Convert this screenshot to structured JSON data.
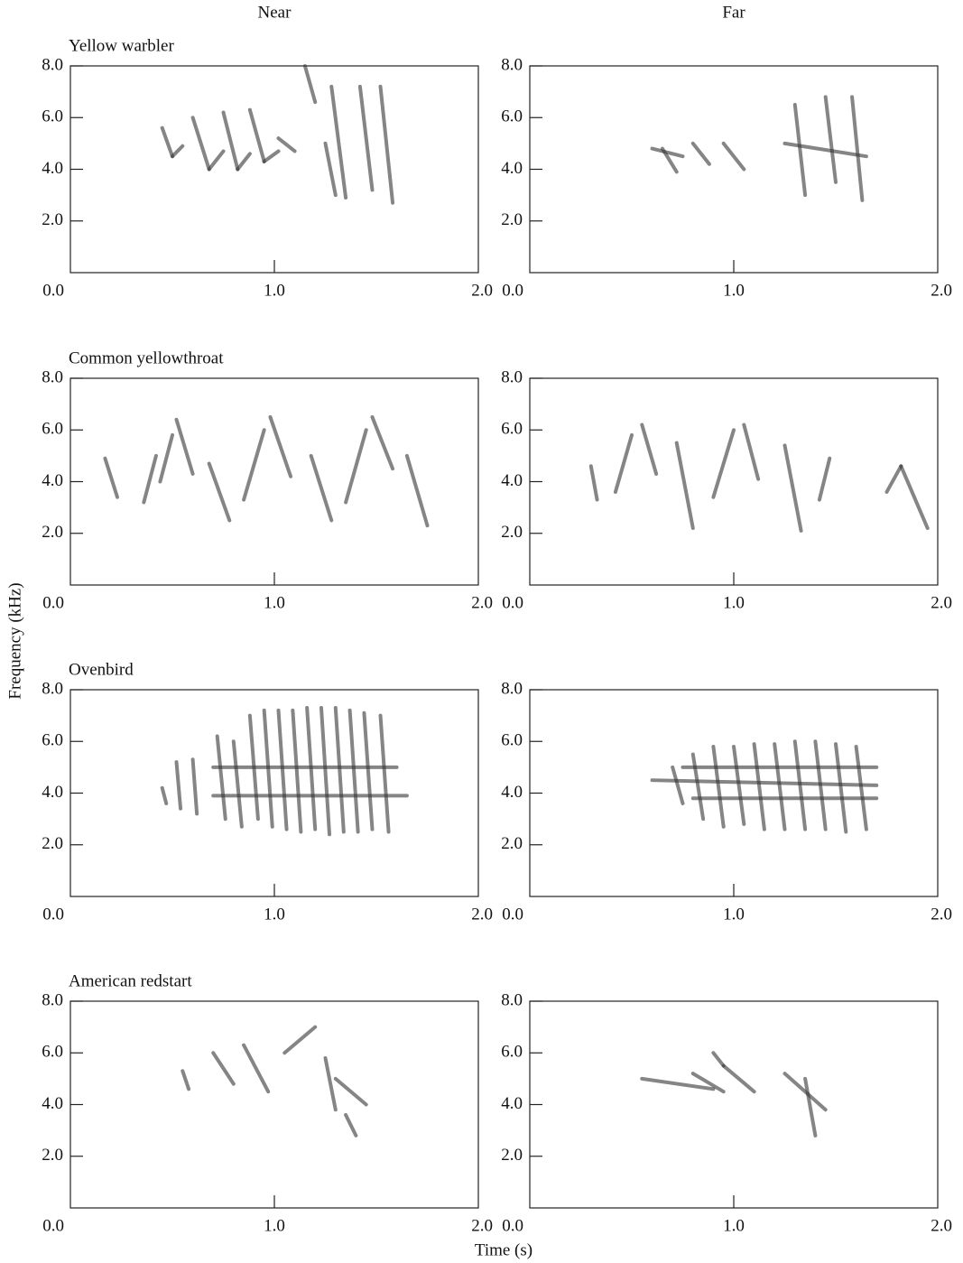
{
  "columns": [
    "Near",
    "Far"
  ],
  "ylabel": "Frequency (kHz)",
  "xlabel": "Time (s)",
  "chart_data": [
    {
      "type": "spectrogram",
      "title": "Yellow warbler",
      "xlim": [
        0,
        2
      ],
      "ylim": [
        0,
        8
      ],
      "xticks": [
        {
          "value": 0,
          "label": "0.0"
        },
        {
          "value": 1,
          "label": "1.0"
        },
        {
          "value": 2,
          "label": "2.0"
        }
      ],
      "yticks": [
        {
          "value": 2,
          "label": "2.0"
        },
        {
          "value": 4,
          "label": "4.0"
        },
        {
          "value": 6,
          "label": "6.0"
        },
        {
          "value": 8,
          "label": "8.0"
        }
      ],
      "notes": [
        [
          0.45,
          5.6,
          0.5,
          4.5
        ],
        [
          0.5,
          4.5,
          0.55,
          4.9
        ],
        [
          0.6,
          6.0,
          0.68,
          4.0
        ],
        [
          0.68,
          4.0,
          0.75,
          4.7
        ],
        [
          0.75,
          6.2,
          0.82,
          4.0
        ],
        [
          0.82,
          4.0,
          0.88,
          4.6
        ],
        [
          0.88,
          6.3,
          0.95,
          4.3
        ],
        [
          0.95,
          4.3,
          1.02,
          4.7
        ],
        [
          1.02,
          5.2,
          1.1,
          4.7
        ],
        [
          1.15,
          8.0,
          1.2,
          6.6
        ],
        [
          1.25,
          5.0,
          1.3,
          3.0
        ],
        [
          1.28,
          7.2,
          1.35,
          2.9
        ],
        [
          1.42,
          7.2,
          1.48,
          3.2
        ],
        [
          1.52,
          7.2,
          1.58,
          2.7
        ]
      ]
    },
    {
      "type": "spectrogram",
      "xlim": [
        0,
        2
      ],
      "ylim": [
        0,
        8
      ],
      "xticks": [
        {
          "value": 0,
          "label": "0.0"
        },
        {
          "value": 1,
          "label": "1.0"
        },
        {
          "value": 2,
          "label": "2.0"
        }
      ],
      "yticks": [
        {
          "value": 2,
          "label": "2.0"
        },
        {
          "value": 4,
          "label": "4.0"
        },
        {
          "value": 6,
          "label": "6.0"
        },
        {
          "value": 8,
          "label": "8.0"
        }
      ],
      "notes": [
        [
          0.6,
          4.8,
          0.75,
          4.5
        ],
        [
          0.65,
          4.8,
          0.72,
          3.9
        ],
        [
          0.8,
          5.0,
          0.88,
          4.2
        ],
        [
          0.95,
          5.0,
          1.05,
          4.0
        ],
        [
          1.25,
          5.0,
          1.65,
          4.5
        ],
        [
          1.3,
          6.5,
          1.35,
          3.0
        ],
        [
          1.45,
          6.8,
          1.5,
          3.5
        ],
        [
          1.58,
          6.8,
          1.63,
          2.8
        ]
      ]
    },
    {
      "type": "spectrogram",
      "title": "Common yellowthroat",
      "xlim": [
        0,
        2
      ],
      "ylim": [
        0,
        8
      ],
      "xticks": [
        {
          "value": 0,
          "label": "0.0"
        },
        {
          "value": 1,
          "label": "1.0"
        },
        {
          "value": 2,
          "label": "2.0"
        }
      ],
      "yticks": [
        {
          "value": 2,
          "label": "2.0"
        },
        {
          "value": 4,
          "label": "4.0"
        },
        {
          "value": 6,
          "label": "6.0"
        },
        {
          "value": 8,
          "label": "8.0"
        }
      ],
      "notes": [
        [
          0.17,
          4.9,
          0.23,
          3.4
        ],
        [
          0.36,
          3.2,
          0.42,
          5.0
        ],
        [
          0.44,
          4.0,
          0.5,
          5.8
        ],
        [
          0.52,
          6.4,
          0.6,
          4.3
        ],
        [
          0.68,
          4.7,
          0.78,
          2.5
        ],
        [
          0.85,
          3.3,
          0.95,
          6.0
        ],
        [
          0.98,
          6.5,
          1.08,
          4.2
        ],
        [
          1.18,
          5.0,
          1.28,
          2.5
        ],
        [
          1.35,
          3.2,
          1.45,
          6.0
        ],
        [
          1.48,
          6.5,
          1.58,
          4.5
        ],
        [
          1.65,
          5.0,
          1.75,
          2.3
        ]
      ]
    },
    {
      "type": "spectrogram",
      "xlim": [
        0,
        2
      ],
      "ylim": [
        0,
        8
      ],
      "xticks": [
        {
          "value": 0,
          "label": "0.0"
        },
        {
          "value": 1,
          "label": "1.0"
        },
        {
          "value": 2,
          "label": "2.0"
        }
      ],
      "yticks": [
        {
          "value": 2,
          "label": "2.0"
        },
        {
          "value": 4,
          "label": "4.0"
        },
        {
          "value": 6,
          "label": "6.0"
        },
        {
          "value": 8,
          "label": "8.0"
        }
      ],
      "notes": [
        [
          0.3,
          4.6,
          0.33,
          3.3
        ],
        [
          0.42,
          3.6,
          0.5,
          5.8
        ],
        [
          0.55,
          6.2,
          0.62,
          4.3
        ],
        [
          0.72,
          5.5,
          0.8,
          2.2
        ],
        [
          0.9,
          3.4,
          1.0,
          6.0
        ],
        [
          1.05,
          6.2,
          1.12,
          4.1
        ],
        [
          1.25,
          5.4,
          1.33,
          2.1
        ],
        [
          1.42,
          3.3,
          1.47,
          4.9
        ],
        [
          1.75,
          3.6,
          1.82,
          4.6
        ],
        [
          1.82,
          4.6,
          1.95,
          2.2
        ]
      ]
    },
    {
      "type": "spectrogram",
      "title": "Ovenbird",
      "xlim": [
        0,
        2
      ],
      "ylim": [
        0,
        8
      ],
      "xticks": [
        {
          "value": 0,
          "label": "0.0"
        },
        {
          "value": 1,
          "label": "1.0"
        },
        {
          "value": 2,
          "label": "2.0"
        }
      ],
      "yticks": [
        {
          "value": 2,
          "label": "2.0"
        },
        {
          "value": 4,
          "label": "4.0"
        },
        {
          "value": 6,
          "label": "6.0"
        },
        {
          "value": 8,
          "label": "8.0"
        }
      ],
      "notes": [
        [
          0.45,
          4.2,
          0.47,
          3.6
        ],
        [
          0.52,
          5.2,
          0.54,
          3.4
        ],
        [
          0.6,
          5.3,
          0.62,
          3.2
        ],
        [
          0.72,
          6.2,
          0.76,
          3.0
        ],
        [
          0.8,
          6.0,
          0.84,
          2.7
        ],
        [
          0.88,
          7.0,
          0.92,
          3.0
        ],
        [
          0.95,
          7.2,
          0.99,
          2.7
        ],
        [
          1.02,
          7.2,
          1.06,
          2.6
        ],
        [
          1.09,
          7.2,
          1.13,
          2.5
        ],
        [
          1.16,
          7.3,
          1.2,
          2.6
        ],
        [
          1.23,
          7.3,
          1.27,
          2.4
        ],
        [
          1.3,
          7.3,
          1.34,
          2.5
        ],
        [
          1.37,
          7.2,
          1.41,
          2.5
        ],
        [
          1.44,
          7.1,
          1.48,
          2.6
        ],
        [
          1.52,
          7.0,
          1.56,
          2.5
        ],
        [
          0.7,
          5.0,
          1.6,
          5.0
        ],
        [
          0.7,
          3.9,
          1.65,
          3.9
        ]
      ]
    },
    {
      "type": "spectrogram",
      "xlim": [
        0,
        2
      ],
      "ylim": [
        0,
        8
      ],
      "xticks": [
        {
          "value": 0,
          "label": "0.0"
        },
        {
          "value": 1,
          "label": "1.0"
        },
        {
          "value": 2,
          "label": "2.0"
        }
      ],
      "yticks": [
        {
          "value": 2,
          "label": "2.0"
        },
        {
          "value": 4,
          "label": "4.0"
        },
        {
          "value": 6,
          "label": "6.0"
        },
        {
          "value": 8,
          "label": "8.0"
        }
      ],
      "notes": [
        [
          0.6,
          4.5,
          1.7,
          4.3
        ],
        [
          0.7,
          5.0,
          0.75,
          3.6
        ],
        [
          0.8,
          5.5,
          0.85,
          3.0
        ],
        [
          0.9,
          5.8,
          0.95,
          2.7
        ],
        [
          1.0,
          5.8,
          1.05,
          2.8
        ],
        [
          1.1,
          5.9,
          1.15,
          2.6
        ],
        [
          1.2,
          5.9,
          1.25,
          2.6
        ],
        [
          1.3,
          6.0,
          1.35,
          2.6
        ],
        [
          1.4,
          6.0,
          1.45,
          2.6
        ],
        [
          1.5,
          5.9,
          1.55,
          2.5
        ],
        [
          1.6,
          5.8,
          1.65,
          2.6
        ],
        [
          0.75,
          5.0,
          1.7,
          5.0
        ],
        [
          0.8,
          3.8,
          1.7,
          3.8
        ]
      ]
    },
    {
      "type": "spectrogram",
      "title": "American redstart",
      "xlim": [
        0,
        2
      ],
      "ylim": [
        0,
        8
      ],
      "xticks": [
        {
          "value": 0,
          "label": "0.0"
        },
        {
          "value": 1,
          "label": "1.0"
        },
        {
          "value": 2,
          "label": "2.0"
        }
      ],
      "yticks": [
        {
          "value": 2,
          "label": "2.0"
        },
        {
          "value": 4,
          "label": "4.0"
        },
        {
          "value": 6,
          "label": "6.0"
        },
        {
          "value": 8,
          "label": "8.0"
        }
      ],
      "notes": [
        [
          0.55,
          5.3,
          0.58,
          4.6
        ],
        [
          0.7,
          6.0,
          0.8,
          4.8
        ],
        [
          0.85,
          6.3,
          0.97,
          4.5
        ],
        [
          1.05,
          6.0,
          1.2,
          7.0
        ],
        [
          1.25,
          5.8,
          1.3,
          3.8
        ],
        [
          1.3,
          5.0,
          1.45,
          4.0
        ],
        [
          1.35,
          3.6,
          1.4,
          2.8
        ]
      ]
    },
    {
      "type": "spectrogram",
      "xlim": [
        0,
        2
      ],
      "ylim": [
        0,
        8
      ],
      "xticks": [
        {
          "value": 0,
          "label": "0.0"
        },
        {
          "value": 1,
          "label": "1.0"
        },
        {
          "value": 2,
          "label": "2.0"
        }
      ],
      "yticks": [
        {
          "value": 2,
          "label": "2.0"
        },
        {
          "value": 4,
          "label": "4.0"
        },
        {
          "value": 6,
          "label": "6.0"
        },
        {
          "value": 8,
          "label": "8.0"
        }
      ],
      "notes": [
        [
          0.55,
          5.0,
          0.9,
          4.6
        ],
        [
          0.8,
          5.2,
          0.95,
          4.5
        ],
        [
          0.9,
          6.0,
          0.95,
          5.5
        ],
        [
          0.95,
          5.5,
          1.1,
          4.5
        ],
        [
          1.25,
          5.2,
          1.45,
          3.8
        ],
        [
          1.35,
          5.0,
          1.4,
          2.8
        ]
      ]
    }
  ]
}
